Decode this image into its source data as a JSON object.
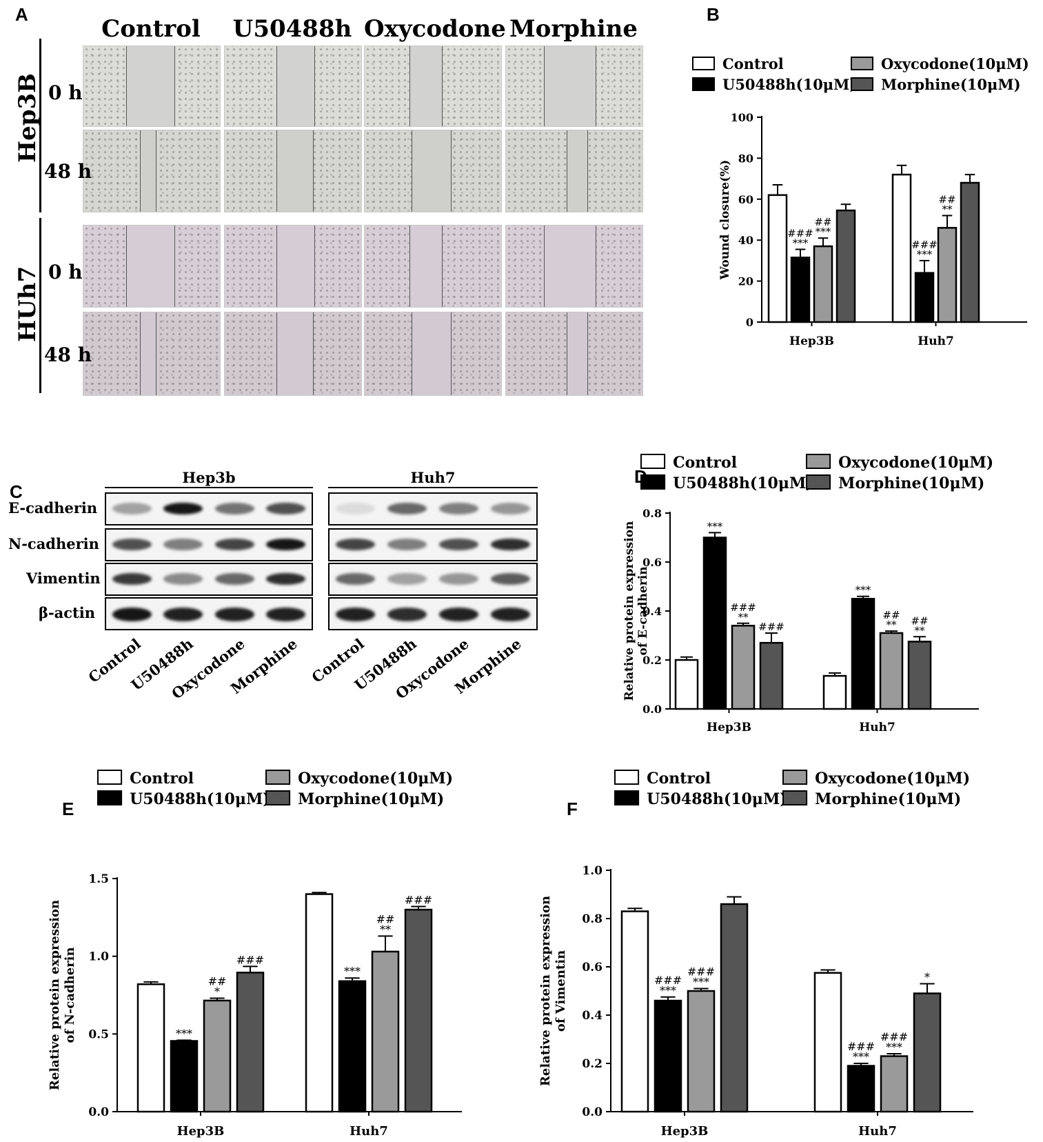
{
  "panels": {
    "A": {
      "label": "A",
      "columns": [
        "Control",
        "U50488h",
        "Oxycodone",
        "Morphine"
      ],
      "cell_lines": [
        "Hep3B",
        "HUh7"
      ],
      "timepoints": [
        "0 h",
        "48 h"
      ]
    },
    "B": {
      "label": "B"
    },
    "C": {
      "label": "C",
      "groups": [
        "Hep3b",
        "Huh7"
      ],
      "proteins": [
        "E-cadherin",
        "N-cadherin",
        "Vimentin",
        "β-actin"
      ],
      "lanes": [
        "Control",
        "U50488h",
        "Oxycodone",
        "Morphine"
      ]
    },
    "D": {
      "label": "D"
    },
    "E": {
      "label": "E"
    },
    "F": {
      "label": "F"
    }
  },
  "legend_entries": [
    "Control",
    "U50488h(10μM)",
    "Oxycodone(10μM)",
    "Morphine(10μM)"
  ],
  "colors": {
    "control": "#ffffff",
    "u50488h": "#000000",
    "oxycodone": "#9a9a9a",
    "morphine": "#555555"
  },
  "chart_data": [
    {
      "id": "B",
      "type": "bar",
      "categories": [
        "Hep3B",
        "Huh7"
      ],
      "ylabel": "Wound closure(%)",
      "ylim": [
        0,
        100
      ],
      "yticks": [
        0,
        20,
        40,
        60,
        80,
        100
      ],
      "series": [
        {
          "name": "Control",
          "values": [
            62,
            72
          ],
          "errors": [
            5,
            4.5
          ],
          "annotations": [
            "",
            ""
          ]
        },
        {
          "name": "U50488h(10μM)",
          "values": [
            31.5,
            24
          ],
          "errors": [
            4,
            6
          ],
          "annotations": [
            "###\n***",
            "###\n***"
          ]
        },
        {
          "name": "Oxycodone(10μM)",
          "values": [
            37,
            46
          ],
          "errors": [
            4,
            6
          ],
          "annotations": [
            "##\n***",
            "##\n**"
          ]
        },
        {
          "name": "Morphine(10μM)",
          "values": [
            54.5,
            68
          ],
          "errors": [
            3,
            4
          ],
          "annotations": [
            "",
            ""
          ]
        }
      ]
    },
    {
      "id": "D",
      "type": "bar",
      "categories": [
        "Hep3B",
        "Huh7"
      ],
      "ylabel": "Relative protein expression\nof E-cadherin",
      "ylim": [
        0,
        0.8
      ],
      "yticks": [
        "0.0",
        "0.2",
        "0.4",
        "0.6",
        "0.8"
      ],
      "series": [
        {
          "name": "Control",
          "values": [
            0.2,
            0.135
          ],
          "errors": [
            0.012,
            0.012
          ],
          "annotations": [
            "",
            ""
          ]
        },
        {
          "name": "U50488h(10μM)",
          "values": [
            0.7,
            0.45
          ],
          "errors": [
            0.02,
            0.01
          ],
          "annotations": [
            "***",
            "***"
          ]
        },
        {
          "name": "Oxycodone(10μM)",
          "values": [
            0.34,
            0.31
          ],
          "errors": [
            0.01,
            0.008
          ],
          "annotations": [
            "###\n**",
            "##\n**"
          ]
        },
        {
          "name": "Morphine(10μM)",
          "values": [
            0.27,
            0.275
          ],
          "errors": [
            0.04,
            0.02
          ],
          "annotations": [
            "###",
            "##\n**"
          ]
        }
      ]
    },
    {
      "id": "E",
      "type": "bar",
      "categories": [
        "Hep3B",
        "Huh7"
      ],
      "ylabel": "Relative protein expression\nof N-cadherin",
      "ylim": [
        0,
        1.5
      ],
      "yticks": [
        "0.0",
        "0.5",
        "1.0",
        "1.5"
      ],
      "series": [
        {
          "name": "Control",
          "values": [
            0.82,
            1.4
          ],
          "errors": [
            0.015,
            0.01
          ],
          "annotations": [
            "",
            ""
          ]
        },
        {
          "name": "U50488h(10μM)",
          "values": [
            0.455,
            0.84
          ],
          "errors": [
            0.005,
            0.02
          ],
          "annotations": [
            "***",
            "***"
          ]
        },
        {
          "name": "Oxycodone(10μM)",
          "values": [
            0.715,
            1.03
          ],
          "errors": [
            0.015,
            0.1
          ],
          "annotations": [
            "##\n*",
            "##\n**"
          ]
        },
        {
          "name": "Morphine(10μM)",
          "values": [
            0.895,
            1.3
          ],
          "errors": [
            0.04,
            0.02
          ],
          "annotations": [
            "###",
            "###"
          ]
        }
      ]
    },
    {
      "id": "F",
      "type": "bar",
      "categories": [
        "Hep3B",
        "Huh7"
      ],
      "ylabel": "Relative protein expression\nof Vimentin",
      "ylim": [
        0,
        1.0
      ],
      "yticks": [
        "0.0",
        "0.2",
        "0.4",
        "0.6",
        "0.8",
        "1.0"
      ],
      "series": [
        {
          "name": "Control",
          "values": [
            0.83,
            0.575
          ],
          "errors": [
            0.012,
            0.012
          ],
          "annotations": [
            "",
            ""
          ]
        },
        {
          "name": "U50488h(10μM)",
          "values": [
            0.46,
            0.19
          ],
          "errors": [
            0.015,
            0.01
          ],
          "annotations": [
            "###\n***",
            "###\n***"
          ]
        },
        {
          "name": "Oxycodone(10μM)",
          "values": [
            0.5,
            0.23
          ],
          "errors": [
            0.01,
            0.01
          ],
          "annotations": [
            "###\n***",
            "###\n***"
          ]
        },
        {
          "name": "Morphine(10μM)",
          "values": [
            0.86,
            0.49
          ],
          "errors": [
            0.03,
            0.04
          ],
          "annotations": [
            "",
            "*"
          ]
        }
      ]
    }
  ]
}
